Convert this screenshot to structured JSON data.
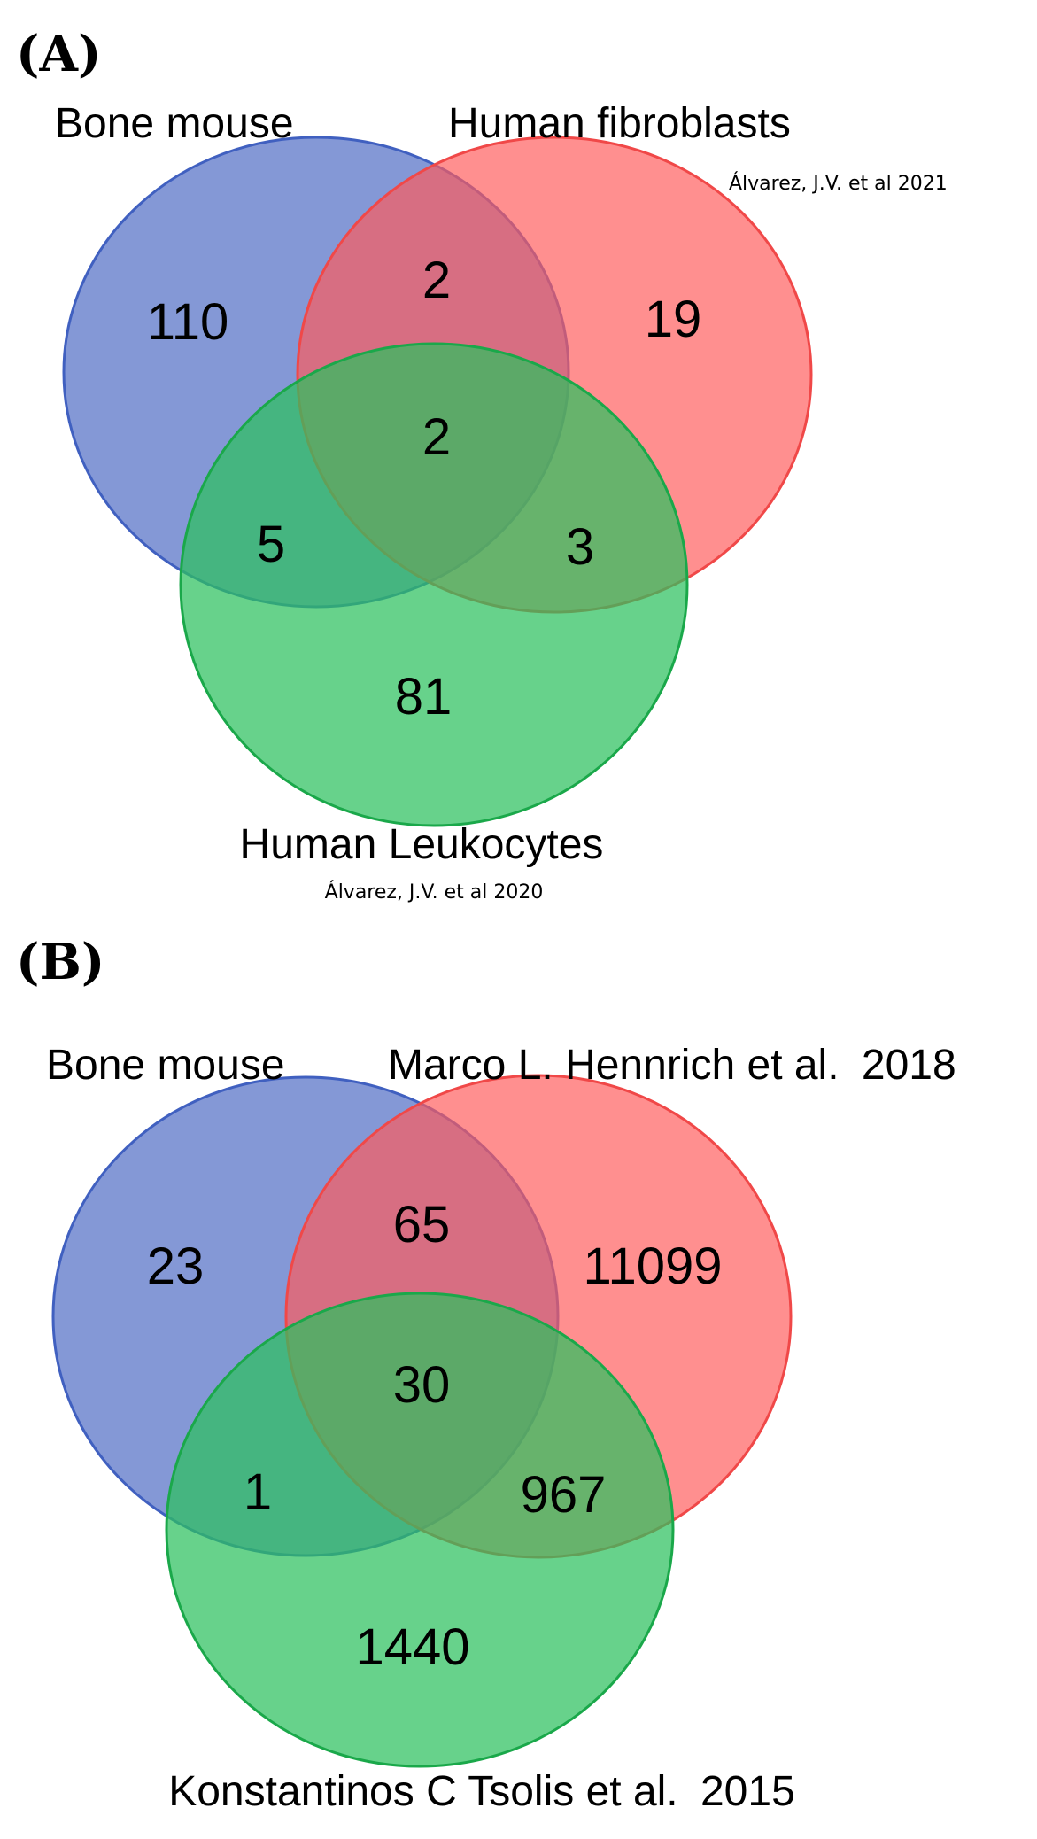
{
  "panel_a": {
    "label": "(A)",
    "sets": [
      {
        "name": "Bone mouse",
        "color": "#5470c6"
      },
      {
        "name": "Human fibroblasts",
        "citation": "Álvarez, J.V. et al 2021",
        "color": "#ff5a5a"
      },
      {
        "name": "Human Leukocytes",
        "citation": "Álvarez, J.V. et al 2020",
        "color": "#2cc15e"
      }
    ],
    "counts": {
      "blue_only": "110",
      "blue_red": "2",
      "red_only": "19",
      "all_three": "2",
      "blue_green": "5",
      "red_green": "3",
      "green_only": "81"
    }
  },
  "panel_b": {
    "label": "(B)",
    "sets": [
      {
        "name": "Bone mouse",
        "color": "#5470c6"
      },
      {
        "name": "Marco L. Hennrich et al.",
        "year": "2018",
        "color": "#ff5a5a"
      },
      {
        "name": "Konstantinos C Tsolis et al.",
        "year": "2015",
        "color": "#2cc15e"
      }
    ],
    "counts": {
      "blue_only": "23",
      "blue_red": "65",
      "red_only": "11099",
      "all_three": "30",
      "blue_green": "1",
      "red_green": "967",
      "green_only": "1440"
    }
  }
}
